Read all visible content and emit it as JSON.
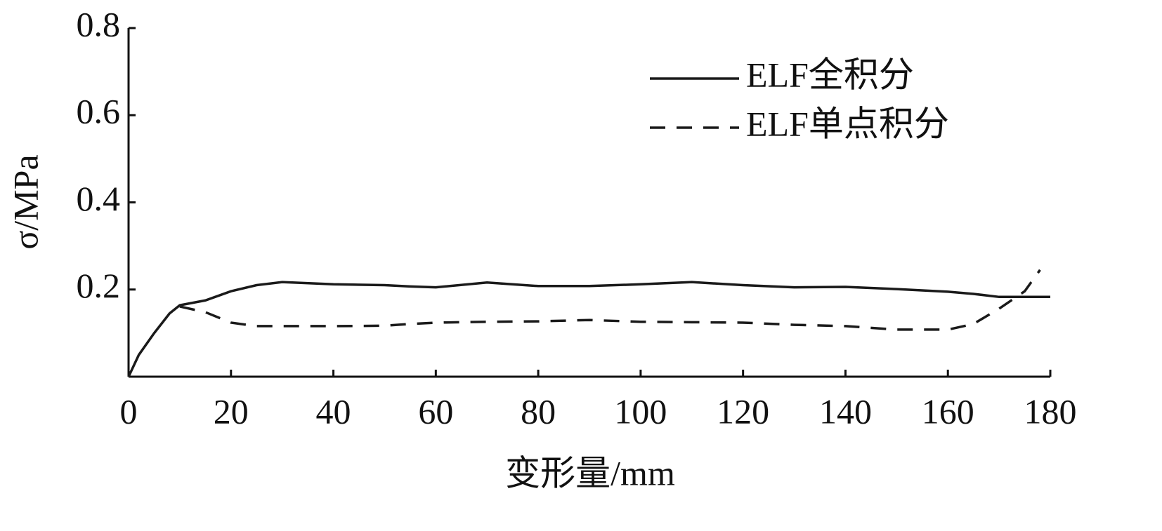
{
  "chart_data": {
    "type": "line",
    "xlabel": "变形量/mm",
    "ylabel": "σ/MPa",
    "x": [
      0,
      2,
      5,
      8,
      10,
      15,
      20,
      25,
      30,
      40,
      50,
      55,
      60,
      70,
      80,
      90,
      100,
      110,
      120,
      130,
      140,
      150,
      160,
      165,
      170,
      175,
      178,
      180
    ],
    "series": [
      {
        "name": "ELF全积分",
        "color": "#1a1a1a",
        "linestyle": "solid",
        "values": [
          0,
          0.05,
          0.1,
          0.145,
          0.164,
          0.175,
          0.196,
          0.21,
          0.217,
          0.212,
          0.21,
          0.207,
          0.205,
          0.216,
          0.208,
          0.208,
          0.212,
          0.217,
          0.21,
          0.205,
          0.206,
          0.201,
          0.195,
          0.19,
          0.183,
          0.183,
          0.183,
          0.183
        ]
      },
      {
        "name": "ELF单点积分",
        "color": "#1a1a1a",
        "linestyle": "dashed",
        "values": [
          null,
          null,
          null,
          null,
          0.161,
          0.148,
          0.124,
          0.116,
          0.116,
          0.116,
          0.117,
          0.121,
          0.124,
          0.126,
          0.127,
          0.13,
          0.126,
          0.125,
          0.124,
          0.119,
          0.116,
          0.108,
          0.108,
          0.121,
          0.156,
          0.196,
          0.245,
          null
        ]
      }
    ],
    "xlim": [
      0,
      180
    ],
    "ylim": [
      0,
      0.8
    ],
    "xticks": [
      0,
      20,
      40,
      60,
      80,
      100,
      120,
      140,
      160,
      180
    ],
    "yticks": [
      0.2,
      0.4,
      0.6,
      0.8
    ],
    "legend": "upper right"
  }
}
